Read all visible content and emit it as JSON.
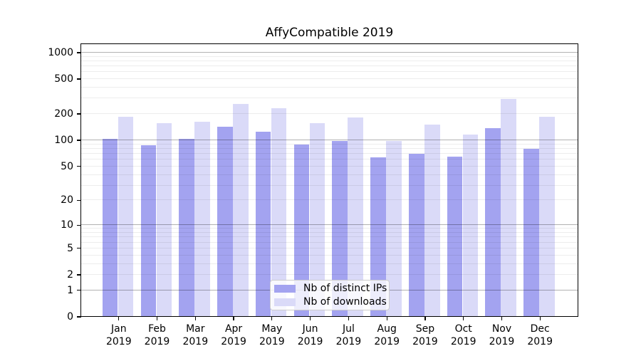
{
  "title": "AffyCompatible 2019",
  "chart_data": {
    "type": "bar",
    "title": "AffyCompatible 2019",
    "categories": [
      "Jan 2019",
      "Feb 2019",
      "Mar 2019",
      "Apr 2019",
      "May 2019",
      "Jun 2019",
      "Jul 2019",
      "Aug 2019",
      "Sep 2019",
      "Oct 2019",
      "Nov 2019",
      "Dec 2019"
    ],
    "series": [
      {
        "name": "Nb of distinct IPs",
        "color": "#a3a3f0",
        "values": [
          103,
          86,
          103,
          140,
          124,
          88,
          96,
          62,
          69,
          64,
          136,
          78
        ]
      },
      {
        "name": "Nb of downloads",
        "color": "#dadaf8",
        "values": [
          181,
          154,
          161,
          255,
          228,
          154,
          178,
          96,
          150,
          115,
          293,
          181
        ]
      }
    ],
    "xlabel": "",
    "ylabel": "",
    "yscale": "log1p",
    "ylim": [
      0,
      1270
    ],
    "grid": "on",
    "legend_position": "lower-center"
  },
  "y_axis": {
    "tick_values": [
      0,
      1,
      2,
      5,
      10,
      20,
      50,
      100,
      200,
      500,
      1000
    ],
    "tick_labels": [
      "0",
      "1",
      "2",
      "5",
      "10",
      "20",
      "50",
      "100",
      "200",
      "500",
      "1000"
    ]
  },
  "x_axis": {
    "months": [
      "Jan",
      "Feb",
      "Mar",
      "Apr",
      "May",
      "Jun",
      "Jul",
      "Aug",
      "Sep",
      "Oct",
      "Nov",
      "Dec"
    ],
    "year": "2019"
  },
  "colors": {
    "distinct_ips": "#a3a3f0",
    "downloads": "#dadaf8",
    "grid_major": "#ababab",
    "grid_minor": "#ebebeb",
    "spine": "#000000",
    "legend_border": "#cccccc"
  }
}
